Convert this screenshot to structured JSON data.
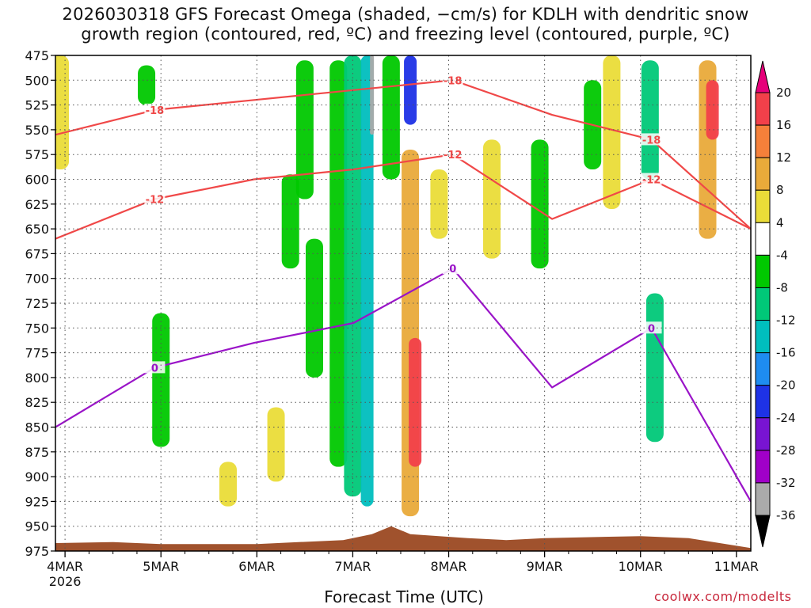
{
  "title_line1": "2026030318 GFS Forecast Omega (shaded, −cm/s) for KDLH with dendritic snow",
  "title_line2": "growth region (contoured, red, ºC) and freezing level (contoured, purple, ºC)",
  "credit": "coolwx.com/modelts",
  "chart_data": {
    "type": "heatmap",
    "title": "2026030318 GFS Forecast Omega (shaded, −cm/s) for KDLH with dendritic snow growth region (contoured, red, ºC) and freezing level (contoured, purple, ºC)",
    "xlabel": "Forecast Time (UTC)",
    "ylabel": "",
    "x_tick_labels": [
      "4MAR",
      "5MAR",
      "6MAR",
      "7MAR",
      "8MAR",
      "9MAR",
      "10MAR",
      "11MAR"
    ],
    "x_tick_sublabel": "2026",
    "x_range_days": [
      -0.1,
      7.15
    ],
    "y_tick_labels": [
      475,
      500,
      525,
      550,
      575,
      600,
      625,
      650,
      675,
      700,
      725,
      750,
      775,
      800,
      825,
      850,
      875,
      900,
      925,
      950,
      975
    ],
    "y_range_hPa": [
      475,
      975
    ],
    "y_inverted": true,
    "grid": true,
    "colorbar": {
      "tick_labels": [
        20,
        16,
        12,
        8,
        4,
        -4,
        -8,
        -12,
        -16,
        -20,
        -24,
        -28,
        -32,
        -36
      ],
      "segments": [
        {
          "from": 16,
          "to": 20,
          "color": "#f2404a"
        },
        {
          "from": 12,
          "to": 16,
          "color": "#f5803a"
        },
        {
          "from": 8,
          "to": 12,
          "color": "#e9aa3a"
        },
        {
          "from": 4,
          "to": 8,
          "color": "#eadc38"
        },
        {
          "from": -4,
          "to": 4,
          "color": "#ffffff"
        },
        {
          "from": -8,
          "to": -4,
          "color": "#00c800"
        },
        {
          "from": -12,
          "to": -8,
          "color": "#00c878"
        },
        {
          "from": -16,
          "to": -12,
          "color": "#00bebe"
        },
        {
          "from": -20,
          "to": -16,
          "color": "#1e8cf0"
        },
        {
          "from": -24,
          "to": -20,
          "color": "#1e32e6"
        },
        {
          "from": -28,
          "to": -24,
          "color": "#7814d2"
        },
        {
          "from": -32,
          "to": -28,
          "color": "#a000c8"
        },
        {
          "from": -36,
          "to": -32,
          "color": "#aaaaaa"
        }
      ],
      "top_arrow_color": "#e6007a",
      "bottom_arrow_color": "#000000"
    },
    "shaded_omega": [
      {
        "t": -0.05,
        "p_top": 475,
        "p_bot": 590,
        "value": 6
      },
      {
        "t": 0.85,
        "p_top": 485,
        "p_bot": 525,
        "value": -6
      },
      {
        "t": 1.0,
        "p_top": 735,
        "p_bot": 870,
        "value": -6
      },
      {
        "t": 1.7,
        "p_top": 885,
        "p_bot": 930,
        "value": 6
      },
      {
        "t": 2.2,
        "p_top": 830,
        "p_bot": 905,
        "value": 6
      },
      {
        "t": 2.35,
        "p_top": 595,
        "p_bot": 690,
        "value": -6
      },
      {
        "t": 2.5,
        "p_top": 480,
        "p_bot": 620,
        "value": -6
      },
      {
        "t": 2.6,
        "p_top": 660,
        "p_bot": 800,
        "value": -8
      },
      {
        "t": 2.85,
        "p_top": 480,
        "p_bot": 890,
        "value": -8
      },
      {
        "t": 3.0,
        "p_top": 475,
        "p_bot": 920,
        "value": -10
      },
      {
        "t": 3.15,
        "p_top": 475,
        "p_bot": 930,
        "value": -14
      },
      {
        "t": 3.2,
        "p_top": 475,
        "p_bot": 555,
        "value": -36
      },
      {
        "t": 3.4,
        "p_top": 475,
        "p_bot": 600,
        "value": -8
      },
      {
        "t": 3.6,
        "p_top": 475,
        "p_bot": 545,
        "value": -22
      },
      {
        "t": 3.6,
        "p_top": 570,
        "p_bot": 940,
        "value": 10
      },
      {
        "t": 3.65,
        "p_top": 760,
        "p_bot": 890,
        "value": 18
      },
      {
        "t": 3.9,
        "p_top": 590,
        "p_bot": 660,
        "value": 6
      },
      {
        "t": 4.45,
        "p_top": 560,
        "p_bot": 680,
        "value": 6
      },
      {
        "t": 4.95,
        "p_top": 560,
        "p_bot": 690,
        "value": -6
      },
      {
        "t": 5.5,
        "p_top": 500,
        "p_bot": 590,
        "value": -6
      },
      {
        "t": 5.7,
        "p_top": 475,
        "p_bot": 630,
        "value": 6
      },
      {
        "t": 6.1,
        "p_top": 480,
        "p_bot": 600,
        "value": -12
      },
      {
        "t": 6.15,
        "p_top": 715,
        "p_bot": 865,
        "value": -10
      },
      {
        "t": 6.7,
        "p_top": 480,
        "p_bot": 660,
        "value": 10
      },
      {
        "t": 6.75,
        "p_top": 500,
        "p_bot": 560,
        "value": 18
      }
    ],
    "contours": [
      {
        "name": "-18",
        "color": "red",
        "approx_pressure_hPa": [
          555,
          530,
          520,
          510,
          500,
          535,
          560,
          650
        ]
      },
      {
        "name": "-12",
        "color": "red",
        "approx_pressure_hPa": [
          660,
          620,
          600,
          590,
          575,
          640,
          600,
          650
        ]
      },
      {
        "name": "0",
        "color": "purple",
        "approx_pressure_hPa": [
          850,
          790,
          765,
          745,
          690,
          810,
          750,
          925
        ]
      }
    ],
    "terrain_color": "#a0522d"
  }
}
